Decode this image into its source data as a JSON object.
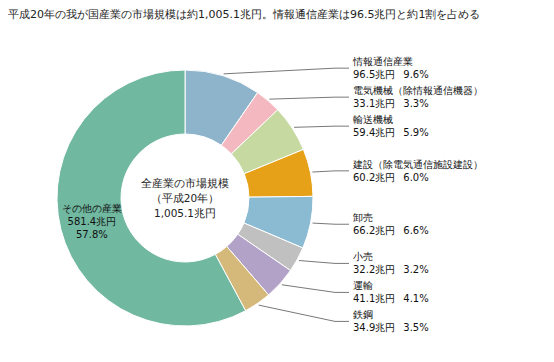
{
  "chart_data": {
    "type": "pie",
    "title": "平成20年の我が国産業の市場規模は約1,005.1兆円。情報通信産業は96.5兆円と約1割を占める",
    "center_text": [
      "全産業の市場規模",
      "（平成20年）",
      "1,005.1兆円"
    ],
    "categories": [
      "情報通信産業",
      "電気機械（除情報通信機器）",
      "輸送機械",
      "建設（除電気通信施設建設）",
      "卸売",
      "小売",
      "運輸",
      "鉄鋼",
      "その他の産業"
    ],
    "values": [
      96.5,
      33.1,
      59.4,
      60.2,
      66.2,
      32.2,
      41.1,
      34.9,
      581.4
    ],
    "value_labels": [
      "96.5兆円",
      "33.1兆円",
      "59.4兆円",
      "60.2兆円",
      "66.2兆円",
      "32.2兆円",
      "41.1兆円",
      "34.9兆円",
      "581.4兆円"
    ],
    "shares": [
      9.6,
      3.3,
      5.9,
      6.0,
      6.6,
      3.2,
      4.1,
      3.5,
      57.8
    ],
    "share_labels": [
      "9.6%",
      "3.3%",
      "5.9%",
      "6.0%",
      "6.6%",
      "3.2%",
      "4.1%",
      "3.5%",
      "57.8%"
    ],
    "colors": [
      "#8eb4cb",
      "#f4b8c1",
      "#c6d9a0",
      "#e6a118",
      "#8bbad3",
      "#c0c0c0",
      "#b3a2c7",
      "#d4b97a",
      "#70b8a0"
    ]
  }
}
